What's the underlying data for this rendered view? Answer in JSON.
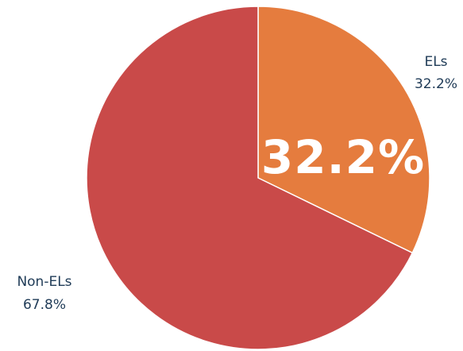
{
  "chart_data": {
    "type": "pie",
    "title": "",
    "categories": [
      "ELs",
      "Non-ELs"
    ],
    "values": [
      32.2,
      67.8
    ],
    "value_labels": [
      "32.2%",
      "67.8%"
    ],
    "colors": [
      "#E57C3E",
      "#C94A49"
    ],
    "highlight_label": "32.2%",
    "legend": "none",
    "start_angle": "12 o'clock",
    "direction": "clockwise"
  }
}
